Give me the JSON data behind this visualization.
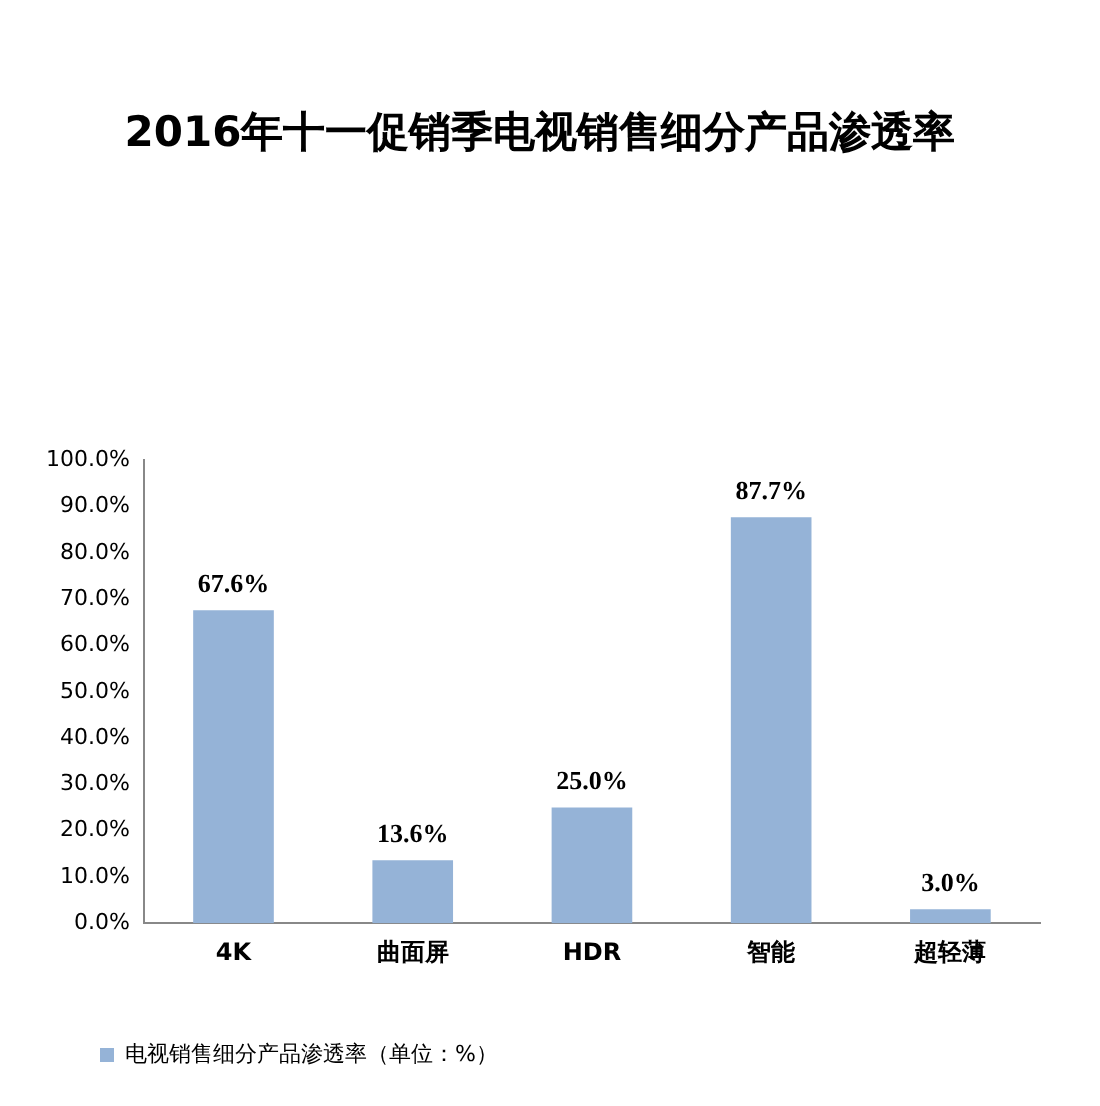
{
  "chart_data": {
    "type": "bar",
    "title": "2016年十一促销季电视销售细分产品渗透率",
    "categories": [
      "4K",
      "曲面屏",
      "HDR",
      "智能",
      "超轻薄"
    ],
    "series": [
      {
        "name": "电视销售细分产品渗透率（单位：%）",
        "color": "#95b3d7",
        "values": [
          67.6,
          13.6,
          25.0,
          87.7,
          3.0
        ],
        "value_labels": [
          "67.6%",
          "13.6%",
          "25.0%",
          "87.7%",
          "3.0%"
        ]
      }
    ],
    "ylim": [
      0,
      100
    ],
    "yticks": [
      {
        "value": 0,
        "label": "0.0%"
      },
      {
        "value": 10,
        "label": "10.0%"
      },
      {
        "value": 20,
        "label": "20.0%"
      },
      {
        "value": 30,
        "label": "30.0%"
      },
      {
        "value": 40,
        "label": "40.0%"
      },
      {
        "value": 50,
        "label": "50.0%"
      },
      {
        "value": 60,
        "label": "60.0%"
      },
      {
        "value": 70,
        "label": "70.0%"
      },
      {
        "value": 80,
        "label": "80.0%"
      },
      {
        "value": 90,
        "label": "90.0%"
      },
      {
        "value": 100,
        "label": "100.0%"
      }
    ],
    "legend": "bottom left"
  }
}
